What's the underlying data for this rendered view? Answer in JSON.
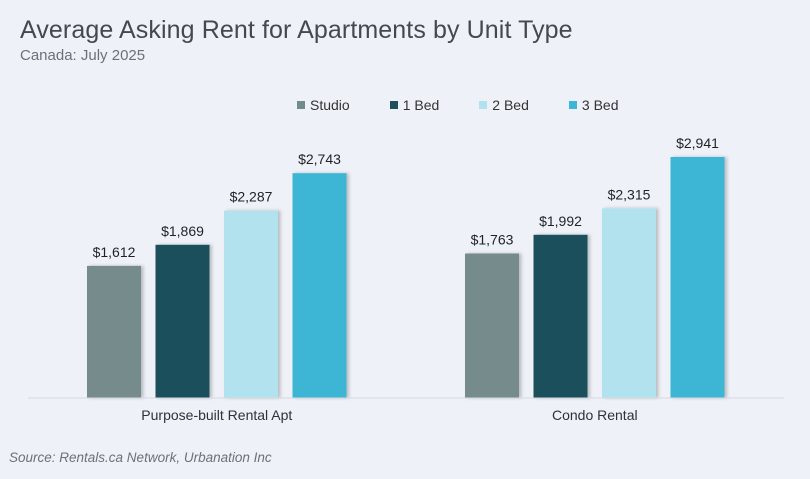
{
  "title": "Average Asking Rent for Apartments by Unit Type",
  "subtitle": "Canada: July 2025",
  "source": "Source: Rentals.ca Network, Urbanation Inc",
  "colors": {
    "Studio": "#748b8c",
    "1 Bed": "#1d505b",
    "2 Bed": "#b3e2ef",
    "3 Bed": "#3cb6d6"
  },
  "chart_data": {
    "type": "bar",
    "categories": [
      "Purpose-built Rental Apt",
      "Condo Rental"
    ],
    "series": [
      {
        "name": "Studio",
        "values": [
          1612,
          1763
        ],
        "labels": [
          "$1,612",
          "$1,763"
        ]
      },
      {
        "name": "1 Bed",
        "values": [
          1869,
          1992
        ],
        "labels": [
          "$1,869",
          "$1,992"
        ]
      },
      {
        "name": "2 Bed",
        "values": [
          2287,
          2315
        ],
        "labels": [
          "$2,287",
          "$2,315"
        ]
      },
      {
        "name": "3 Bed",
        "values": [
          2743,
          2941
        ],
        "labels": [
          "$2,743",
          "$2,941"
        ]
      }
    ],
    "ylim": [
      0,
      3000
    ],
    "legend": "top-center",
    "grid": false
  }
}
